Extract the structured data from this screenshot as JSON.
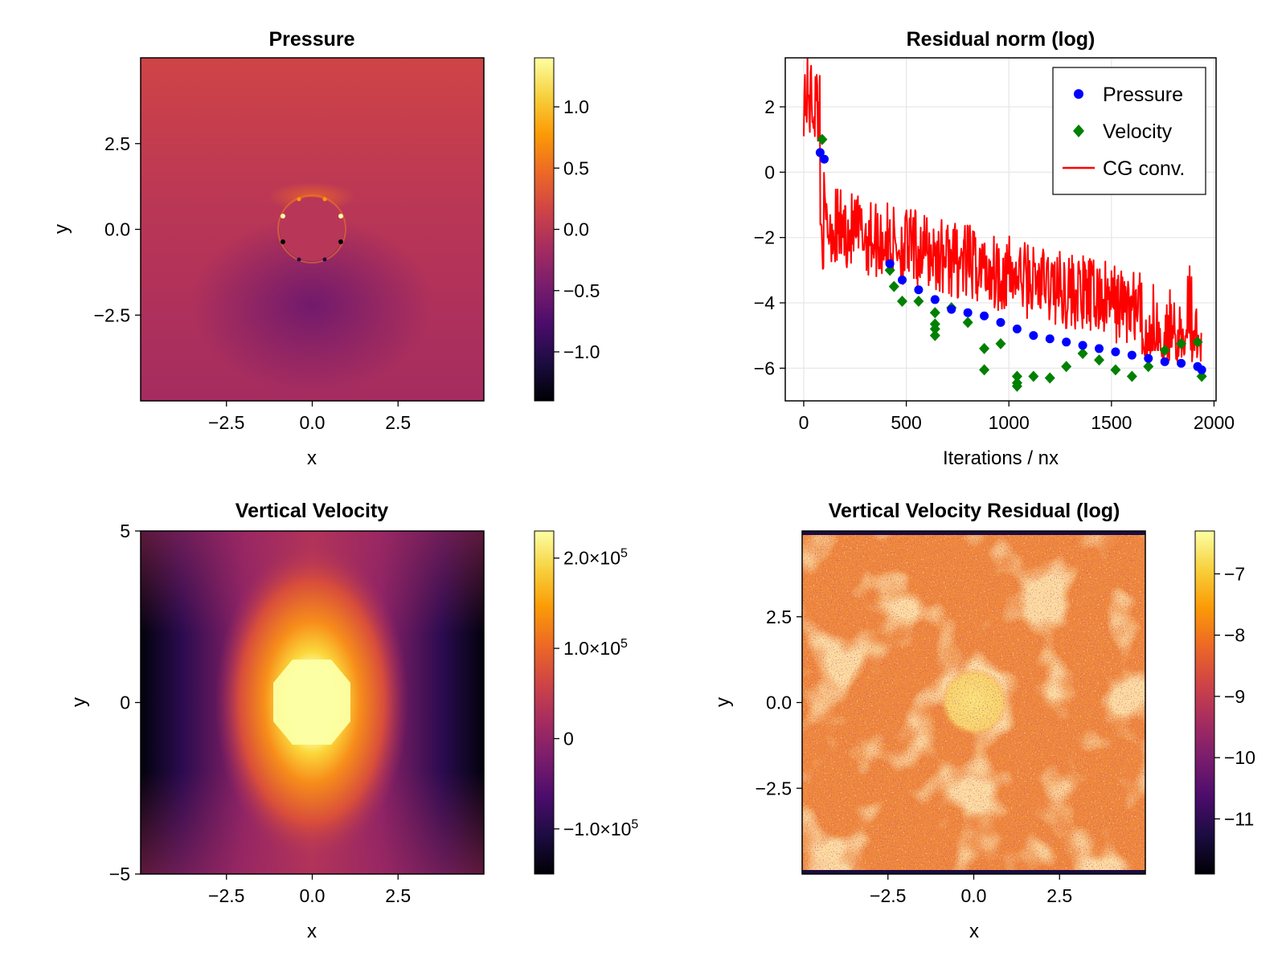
{
  "figure": {
    "colormap": "inferno",
    "colormap_stops": [
      "#000004",
      "#1b0c41",
      "#4a0c6b",
      "#781c6d",
      "#a52c60",
      "#cf4446",
      "#ed6925",
      "#fb9b06",
      "#f7d13d",
      "#fcffa4"
    ]
  },
  "chart_data": [
    {
      "type": "heatmap",
      "title": "Pressure",
      "xlabel": "x",
      "ylabel": "y",
      "xlim": [
        -5,
        5
      ],
      "ylim": [
        -5,
        5
      ],
      "xticks": [
        -2.5,
        0.0,
        2.5
      ],
      "xtick_labels": [
        "−2.5",
        "0.0",
        "2.5"
      ],
      "yticks": [
        -2.5,
        0.0,
        2.5
      ],
      "ytick_labels": [
        "−2.5",
        "0.0",
        "2.5"
      ],
      "colorbar": {
        "range": [
          -1.4,
          1.4
        ],
        "ticks": [
          1.0,
          0.5,
          0.0,
          -0.5,
          -1.0
        ],
        "tick_labels": [
          "1.0",
          "0.5",
          "0.0",
          "−0.5",
          "−1.0"
        ]
      },
      "field": "circular inclusion of radius 1 at origin; background about 0.2 at top to about -0.5 at bottom; sharp positive/negative spikes at the inclusion boundary"
    },
    {
      "type": "scatter",
      "title": "Residual norm (log)",
      "xlabel": "Iterations / nx",
      "ylabel": "",
      "xlim": [
        -90,
        2010
      ],
      "ylim": [
        -7.0,
        3.5
      ],
      "xticks": [
        0,
        500,
        1000,
        1500,
        2000
      ],
      "xtick_labels": [
        "0",
        "500",
        "1000",
        "1500",
        "2000"
      ],
      "yticks": [
        2,
        0,
        -2,
        -4,
        -6
      ],
      "ytick_labels": [
        "2",
        "0",
        "−2",
        "−4",
        "−6"
      ],
      "grid": true,
      "legend": {
        "position": "top-right",
        "entries": [
          {
            "label": "Pressure",
            "color": "#0000ff",
            "marker": "circle"
          },
          {
            "label": "Velocity",
            "color": "#008000",
            "marker": "diamond"
          },
          {
            "label": "CG conv.",
            "color": "#ff0000",
            "marker": "line"
          }
        ]
      },
      "series": [
        {
          "name": "Pressure",
          "marker": "circle",
          "color": "#0000ff",
          "x": [
            80,
            100,
            420,
            480,
            560,
            640,
            720,
            800,
            880,
            960,
            1040,
            1120,
            1200,
            1280,
            1360,
            1440,
            1520,
            1600,
            1680,
            1760,
            1840,
            1920,
            1940
          ],
          "y": [
            0.6,
            0.4,
            -2.8,
            -3.3,
            -3.6,
            -3.9,
            -4.2,
            -4.3,
            -4.4,
            -4.6,
            -4.8,
            -5.0,
            -5.1,
            -5.2,
            -5.3,
            -5.4,
            -5.5,
            -5.6,
            -5.7,
            -5.8,
            -5.85,
            -5.95,
            -6.05
          ]
        },
        {
          "name": "Velocity",
          "marker": "diamond",
          "color": "#008000",
          "x": [
            90,
            420,
            440,
            480,
            560,
            640,
            640,
            640,
            640,
            720,
            800,
            880,
            880,
            960,
            1040,
            1040,
            1040,
            1120,
            1200,
            1280,
            1360,
            1440,
            1520,
            1600,
            1680,
            1760,
            1840,
            1920,
            1940
          ],
          "y": [
            1.0,
            -3.0,
            -3.5,
            -3.95,
            -3.95,
            -4.3,
            -4.65,
            -4.8,
            -5.0,
            -4.15,
            -4.6,
            -5.4,
            -6.05,
            -5.25,
            -6.25,
            -6.45,
            -6.55,
            -6.25,
            -6.3,
            -5.95,
            -5.55,
            -5.75,
            -6.05,
            -6.25,
            -5.95,
            -5.45,
            -5.25,
            -5.2,
            -6.25
          ]
        },
        {
          "name": "CG conv.",
          "marker": "line",
          "color": "#ff0000",
          "description": "noisy convergence trace from ~3 at start, dropping to about -2.5 near 80, then oscillating band trending to about -5.5 near 1700-1900, ending near -6 at 1940"
        }
      ]
    },
    {
      "type": "heatmap",
      "title": "Vertical Velocity",
      "xlabel": "x",
      "ylabel": "y",
      "xlim": [
        -5,
        5
      ],
      "ylim": [
        -5,
        5
      ],
      "xticks": [
        -2.5,
        0.0,
        2.5
      ],
      "xtick_labels": [
        "−2.5",
        "0.0",
        "2.5"
      ],
      "yticks": [
        5,
        0,
        -5
      ],
      "ytick_labels": [
        "5",
        "0",
        "−5"
      ],
      "colorbar": {
        "range": [
          -150000,
          230000
        ],
        "ticks": [
          200000,
          100000,
          0,
          -100000
        ],
        "tick_labels": [
          {
            "base": "2.0×10",
            "exp": "5"
          },
          {
            "base": "1.0×10",
            "exp": "5"
          },
          {
            "base": "0",
            "exp": ""
          },
          {
            "base": "−1.0×10",
            "exp": "5"
          }
        ]
      },
      "field": "strong upward velocity in the circular inclusion at origin, decaying outward; negative (downward) lobes at the left and right edges"
    },
    {
      "type": "heatmap",
      "title": "Vertical Velocity Residual (log)",
      "xlabel": "x",
      "ylabel": "y",
      "xlim": [
        -5,
        5
      ],
      "ylim": [
        -5,
        5
      ],
      "xticks": [
        -2.5,
        0.0,
        2.5
      ],
      "xtick_labels": [
        "−2.5",
        "0.0",
        "2.5"
      ],
      "yticks": [
        -2.5,
        0.0,
        2.5
      ],
      "ytick_labels": [
        "−2.5",
        "0.0",
        "2.5"
      ],
      "colorbar": {
        "range": [
          -11.9,
          -6.3
        ],
        "ticks": [
          -7,
          -8,
          -9,
          -10,
          -11
        ],
        "tick_labels": [
          "−7",
          "−8",
          "−9",
          "−10",
          "−11"
        ]
      },
      "field": "noisy field mostly around -8, with a brighter disk (about -7) at the origin and dark bands at the top and bottom edges"
    }
  ]
}
